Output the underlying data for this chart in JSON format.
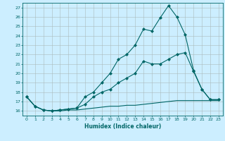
{
  "title": "",
  "xlabel": "Humidex (Indice chaleur)",
  "bg_color": "#cceeff",
  "line_color": "#006666",
  "grid_color": "#aabbbb",
  "xlim": [
    -0.5,
    23.5
  ],
  "ylim": [
    15.5,
    27.5
  ],
  "yticks": [
    16,
    17,
    18,
    19,
    20,
    21,
    22,
    23,
    24,
    25,
    26,
    27
  ],
  "xticks": [
    0,
    1,
    2,
    3,
    4,
    5,
    6,
    7,
    8,
    9,
    10,
    11,
    12,
    13,
    14,
    15,
    16,
    17,
    18,
    19,
    20,
    21,
    22,
    23
  ],
  "curve1_x": [
    0,
    1,
    2,
    3,
    4,
    5,
    6,
    7,
    8,
    9,
    10,
    11,
    12,
    13,
    14,
    15,
    16,
    17,
    18,
    19,
    20,
    21,
    22,
    23
  ],
  "curve1_y": [
    17.5,
    16.5,
    16.1,
    16.0,
    16.1,
    16.2,
    16.3,
    17.5,
    18.0,
    19.0,
    20.0,
    21.5,
    22.0,
    23.0,
    24.7,
    24.5,
    25.9,
    27.2,
    26.0,
    24.1,
    20.3,
    18.3,
    17.2,
    17.2
  ],
  "curve2_x": [
    0,
    1,
    2,
    3,
    4,
    5,
    6,
    7,
    8,
    9,
    10,
    11,
    12,
    13,
    14,
    15,
    16,
    17,
    18,
    19,
    20,
    21,
    22,
    23
  ],
  "curve2_y": [
    17.5,
    16.5,
    16.1,
    16.0,
    16.1,
    16.2,
    16.3,
    16.7,
    17.5,
    18.0,
    18.3,
    19.0,
    19.5,
    20.0,
    21.3,
    21.0,
    21.0,
    21.5,
    22.0,
    22.2,
    20.2,
    18.3,
    17.2,
    17.2
  ],
  "curve3_x": [
    0,
    1,
    2,
    3,
    4,
    5,
    6,
    7,
    8,
    9,
    10,
    11,
    12,
    13,
    14,
    15,
    16,
    17,
    18,
    19,
    20,
    21,
    22,
    23
  ],
  "curve3_y": [
    17.5,
    16.5,
    16.1,
    16.0,
    16.0,
    16.1,
    16.1,
    16.2,
    16.3,
    16.4,
    16.5,
    16.5,
    16.6,
    16.6,
    16.7,
    16.8,
    16.9,
    17.0,
    17.1,
    17.1,
    17.1,
    17.1,
    17.1,
    17.1
  ],
  "lw": 0.8,
  "marker": "D",
  "markersize": 2.0
}
